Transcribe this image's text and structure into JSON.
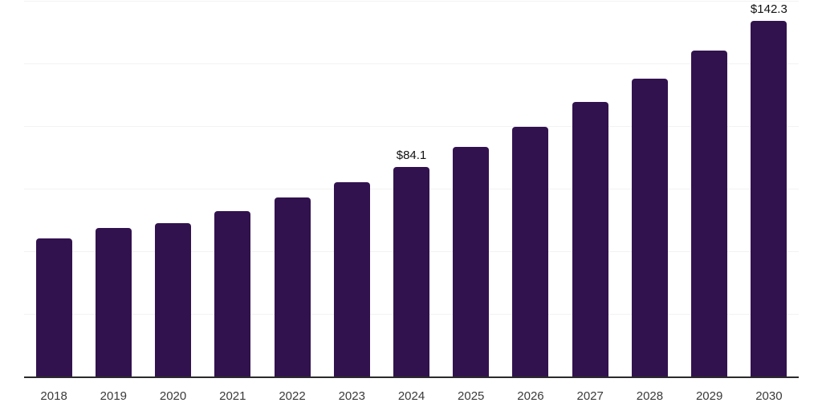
{
  "chart_data": {
    "type": "bar",
    "title": "",
    "xlabel": "",
    "ylabel": "",
    "categories": [
      "2018",
      "2019",
      "2020",
      "2021",
      "2022",
      "2023",
      "2024",
      "2025",
      "2026",
      "2027",
      "2028",
      "2029",
      "2030"
    ],
    "values": [
      55.5,
      59.5,
      61.6,
      66.2,
      71.9,
      78.0,
      84.1,
      92.1,
      100.1,
      110.0,
      119.1,
      130.3,
      142.3
    ],
    "value_labels": {
      "2024": "$84.1",
      "2030": "$142.3"
    },
    "ylim": [
      0,
      150
    ],
    "gridline_step": 25,
    "grid": "horizontal-only",
    "y_tick_labels_visible": false,
    "legend_position": "none",
    "colors": {
      "bar": "#32124e",
      "axis_line": "#2b2b2b",
      "gridline": "#f2f2f2",
      "value_label_text": "#111111",
      "tick_label_text": "#3a3a3a",
      "background": "#ffffff"
    }
  }
}
